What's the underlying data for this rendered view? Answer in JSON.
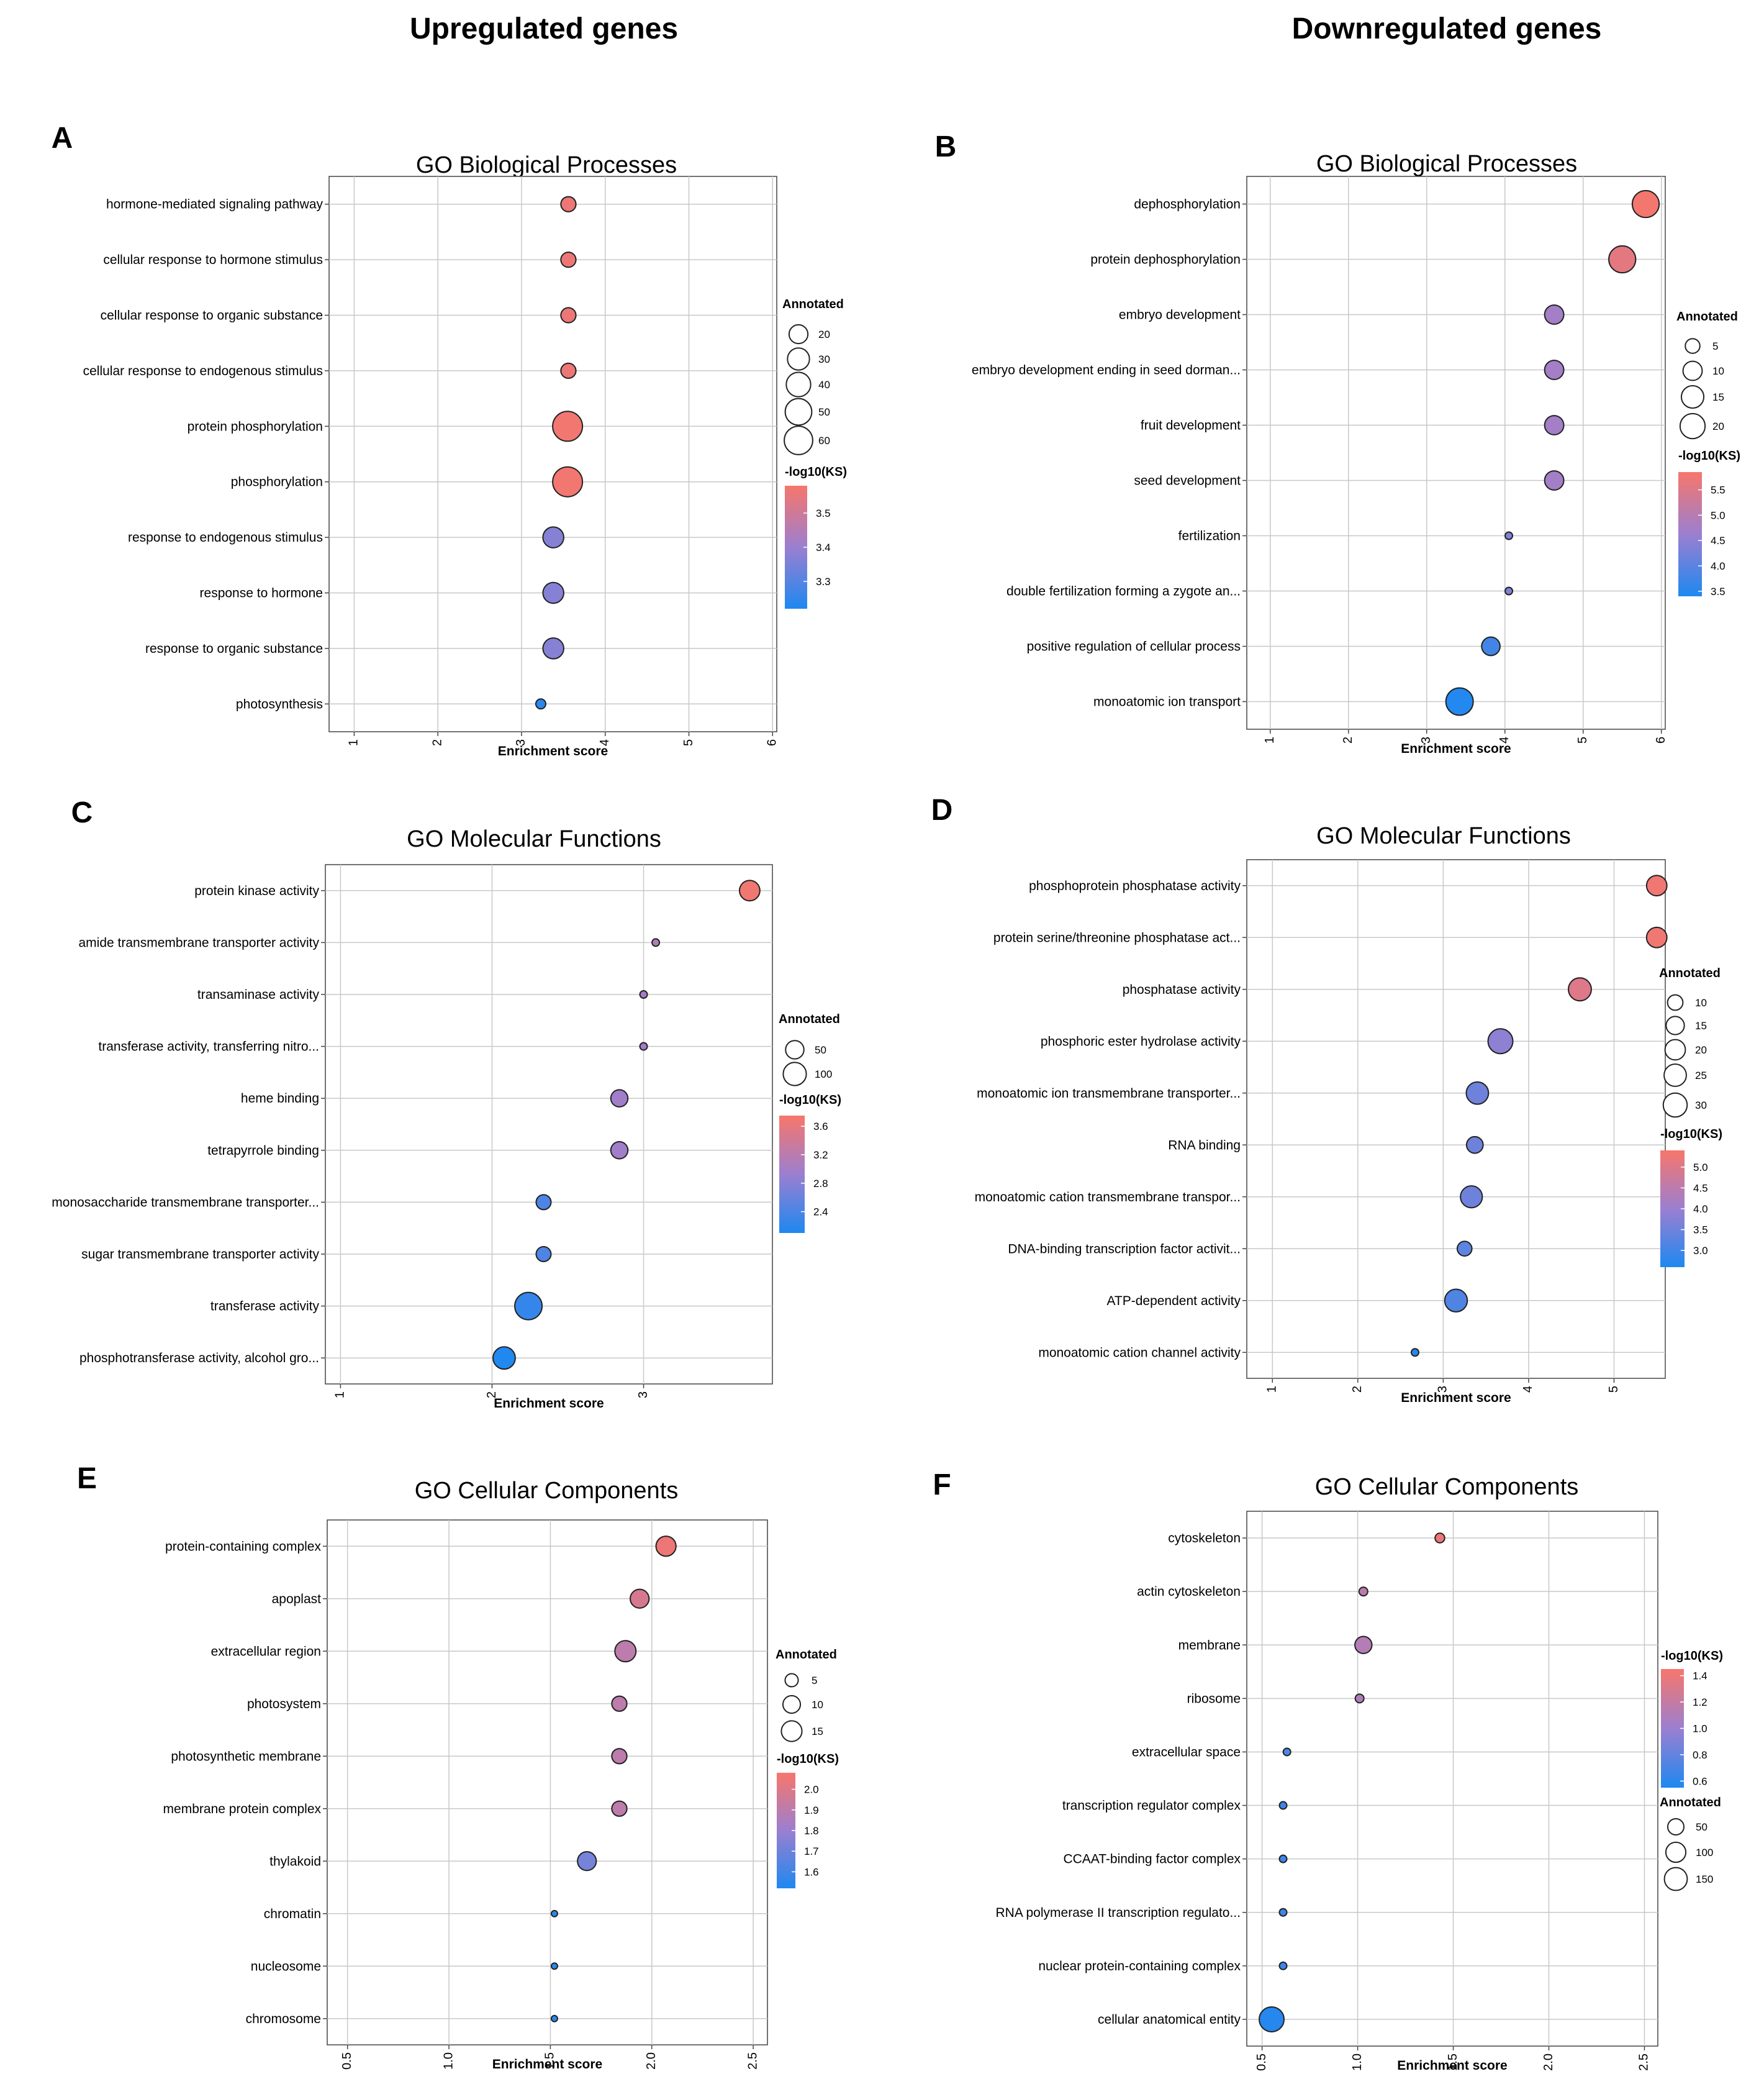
{
  "column_headers": [
    "Upregulated genes",
    "Downregulated genes"
  ],
  "legend_size_title": "Annotated",
  "legend_color_title": "-log10(KS)",
  "color_scale": {
    "low": "#1e88f0",
    "mid": "#9b7fd0",
    "high": "#f7766b"
  },
  "chart_data": [
    {
      "panel": "A",
      "type": "scatter",
      "title": "GO Biological Processes",
      "xlabel": "Enrichment score",
      "xlim": [
        0.7,
        6.05
      ],
      "xticks": [
        1,
        2,
        3,
        4,
        5,
        6
      ],
      "categories": [
        "hormone-mediated signaling pathway",
        "cellular response to hormone stimulus",
        "cellular response to organic substance",
        "cellular response to endogenous stimulus",
        "protein phosphorylation",
        "phosphorylation",
        "response to endogenous stimulus",
        "response to hormone",
        "response to organic substance",
        "photosynthesis"
      ],
      "x": [
        3.56,
        3.56,
        3.56,
        3.56,
        3.55,
        3.55,
        3.38,
        3.38,
        3.38,
        3.23
      ],
      "annotated": [
        12,
        12,
        12,
        12,
        68,
        68,
        26,
        26,
        26,
        8
      ],
      "neglog10ks": [
        3.56,
        3.56,
        3.56,
        3.56,
        3.57,
        3.57,
        3.37,
        3.37,
        3.37,
        3.24
      ],
      "size_legend": [
        20,
        30,
        40,
        50,
        60
      ],
      "size_min": 8,
      "size_max": 68,
      "color_ticks": [
        "3.5",
        "3.4",
        "3.3"
      ],
      "color_values": [
        3.5,
        3.4,
        3.3
      ],
      "color_range": [
        3.22,
        3.58
      ]
    },
    {
      "panel": "B",
      "type": "scatter",
      "title": "GO Biological Processes",
      "xlabel": "Enrichment score",
      "xlim": [
        0.7,
        6.05
      ],
      "xticks": [
        1,
        2,
        3,
        4,
        5,
        6
      ],
      "categories": [
        "dephosphorylation",
        "protein dephosphorylation",
        "embryo development",
        "embryo development ending in seed dorman...",
        "fruit development",
        "seed development",
        "fertilization",
        "double fertilization forming a zygote an...",
        "positive regulation of cellular process",
        "monoatomic ion transport"
      ],
      "x": [
        5.8,
        5.5,
        4.63,
        4.63,
        4.63,
        4.63,
        4.05,
        4.05,
        3.82,
        3.42
      ],
      "annotated": [
        24,
        24,
        10,
        10,
        10,
        10,
        2,
        2,
        9,
        25
      ],
      "neglog10ks": [
        5.8,
        5.6,
        4.75,
        4.75,
        4.75,
        4.75,
        4.35,
        4.35,
        3.75,
        3.45
      ],
      "size_legend": [
        5,
        10,
        15,
        20
      ],
      "size_min": 2,
      "size_max": 25,
      "color_ticks": [
        "5.5",
        "5.0",
        "4.5",
        "4.0",
        "3.5"
      ],
      "color_values": [
        5.5,
        5.0,
        4.5,
        4.0,
        3.5
      ],
      "color_range": [
        3.4,
        5.85
      ]
    },
    {
      "panel": "C",
      "type": "scatter",
      "title": "GO Molecular Functions",
      "xlabel": "Enrichment score",
      "xlim": [
        0.9,
        3.85
      ],
      "xticks": [
        1,
        2,
        3
      ],
      "categories": [
        "protein kinase activity",
        "amide transmembrane transporter activity",
        "transaminase activity",
        "transferase activity, transferring nitro...",
        "heme binding",
        "tetrapyrrole binding",
        "monosaccharide transmembrane transporter...",
        "sugar transmembrane transporter activity",
        "transferase activity",
        "phosphotransferase activity, alcohol gro..."
      ],
      "x": [
        3.7,
        3.08,
        3.0,
        3.0,
        2.84,
        2.84,
        2.34,
        2.34,
        2.24,
        2.08
      ],
      "annotated": [
        70,
        3,
        3,
        3,
        40,
        40,
        25,
        25,
        160,
        90
      ],
      "neglog10ks": [
        3.7,
        3.12,
        3.0,
        3.0,
        2.98,
        2.98,
        2.42,
        2.42,
        2.25,
        2.12
      ],
      "size_legend": [
        50,
        100
      ],
      "size_min": 3,
      "size_max": 160,
      "color_ticks": [
        "3.6",
        "3.2",
        "2.8",
        "2.4"
      ],
      "color_values": [
        3.6,
        3.2,
        2.8,
        2.4
      ],
      "color_range": [
        2.1,
        3.75
      ]
    },
    {
      "panel": "D",
      "type": "scatter",
      "title": "GO Molecular Functions",
      "xlabel": "Enrichment score",
      "xlim": [
        0.7,
        5.6
      ],
      "xticks": [
        1,
        2,
        3,
        4,
        5
      ],
      "categories": [
        "phosphoprotein phosphatase activity",
        "protein serine/threonine phosphatase act...",
        "phosphatase activity",
        "phosphoric ester hydrolase activity",
        "monoatomic ion transmembrane transporter...",
        "RNA binding",
        "monoatomic cation transmembrane transpor...",
        "DNA-binding transcription factor activit...",
        "ATP-dependent activity",
        "monoatomic cation channel activity"
      ],
      "x": [
        5.5,
        5.5,
        4.6,
        3.67,
        3.4,
        3.37,
        3.33,
        3.25,
        3.15,
        2.67
      ],
      "annotated": [
        20,
        20,
        27,
        33,
        25,
        12,
        24,
        9,
        26,
        4
      ],
      "neglog10ks": [
        5.3,
        5.3,
        5.0,
        3.85,
        3.5,
        3.5,
        3.5,
        3.3,
        3.15,
        2.7
      ],
      "size_legend": [
        10,
        15,
        20,
        25,
        30
      ],
      "size_min": 4,
      "size_max": 33,
      "color_ticks": [
        "5.0",
        "4.5",
        "4.0",
        "3.5",
        "3.0"
      ],
      "color_values": [
        5.0,
        4.5,
        4.0,
        3.5,
        3.0
      ],
      "color_range": [
        2.6,
        5.4
      ]
    },
    {
      "panel": "E",
      "type": "scatter",
      "title": "GO Cellular Components",
      "xlabel": "Enrichment score",
      "xlim": [
        0.4,
        2.57
      ],
      "xticks": [
        0.5,
        1.0,
        1.5,
        2.0,
        2.5
      ],
      "categories": [
        "protein-containing complex",
        "apoplast",
        "extracellular region",
        "photosystem",
        "photosynthetic membrane",
        "membrane protein complex",
        "thylakoid",
        "chromatin",
        "nucleosome",
        "chromosome"
      ],
      "x": [
        2.07,
        1.94,
        1.87,
        1.84,
        1.84,
        1.84,
        1.68,
        1.52,
        1.52,
        1.52
      ],
      "annotated": [
        14,
        12,
        16,
        7,
        7,
        7,
        12,
        2,
        2,
        2
      ],
      "neglog10ks": [
        2.05,
        1.98,
        1.9,
        1.9,
        1.9,
        1.9,
        1.72,
        1.55,
        1.55,
        1.55
      ],
      "size_legend": [
        5,
        10,
        15
      ],
      "size_min": 2,
      "size_max": 16,
      "color_ticks": [
        "2.0",
        "1.9",
        "1.8",
        "1.7",
        "1.6"
      ],
      "color_values": [
        2.0,
        1.9,
        1.8,
        1.7,
        1.6
      ],
      "color_range": [
        1.52,
        2.08
      ]
    },
    {
      "panel": "F",
      "type": "scatter",
      "title": "GO Cellular Components",
      "xlabel": "Enrichment score",
      "xlim": [
        0.42,
        2.57
      ],
      "xticks": [
        0.5,
        1.0,
        1.5,
        2.0,
        2.5
      ],
      "categories": [
        "cytoskeleton",
        "actin cytoskeleton",
        "membrane",
        "ribosome",
        "extracellular space",
        "transcription regulator complex",
        "CCAAT-binding factor complex",
        "RNA polymerase II transcription regulato...",
        "nuclear protein-containing complex",
        "cellular anatomical entity"
      ],
      "x": [
        1.43,
        1.03,
        1.03,
        1.01,
        0.63,
        0.61,
        0.61,
        0.61,
        0.61,
        0.55
      ],
      "annotated": [
        6,
        4,
        60,
        4,
        3,
        3,
        3,
        3,
        3,
        190
      ],
      "neglog10ks": [
        1.4,
        1.15,
        1.12,
        1.1,
        0.72,
        0.66,
        0.66,
        0.66,
        0.66,
        0.58
      ],
      "size_legend": [
        50,
        100,
        150
      ],
      "size_min": 3,
      "size_max": 190,
      "color_ticks": [
        "1.4",
        "1.2",
        "1.0",
        "0.8",
        "0.6"
      ],
      "color_values": [
        1.4,
        1.2,
        1.0,
        0.8,
        0.6
      ],
      "color_range": [
        0.55,
        1.45
      ]
    }
  ]
}
